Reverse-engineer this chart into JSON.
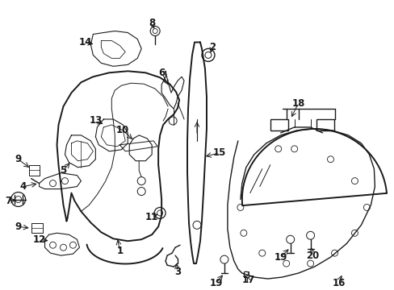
{
  "bg_color": "#ffffff",
  "line_color": "#1a1a1a",
  "text_color": "#000000",
  "figsize": [
    4.89,
    3.6
  ],
  "dpi": 100,
  "xlim": [
    0,
    489
  ],
  "ylim": [
    0,
    360
  ]
}
